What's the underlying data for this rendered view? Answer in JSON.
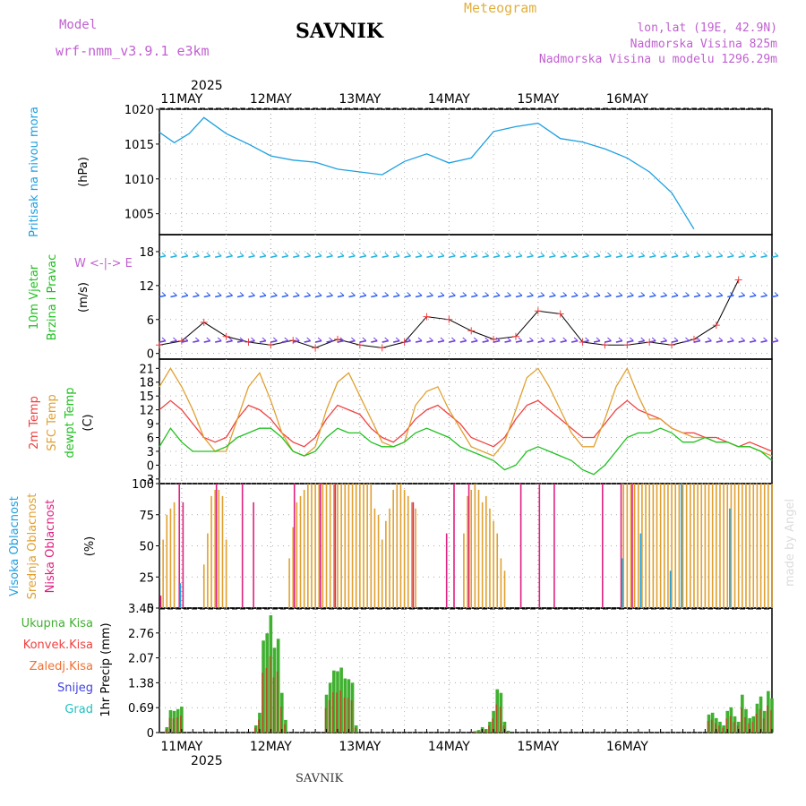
{
  "header": {
    "model_label": "Model",
    "model_version": "wrf-nmm_v3.9.1 e3km",
    "station": "SAVNIK",
    "meteogram": "Meteogram",
    "lonlat": "lon,lat (19E, 42.9N)",
    "elevation": "Nadmorska Visina 825m",
    "model_elevation": "Nadmorska Visina u modelu 1296.29m",
    "bottom_name": "SAVNIK",
    "made_by": "made by Angel"
  },
  "colors": {
    "model": "#c060d0",
    "meteogram": "#e0b040",
    "pressure": "#1ea0e0",
    "t2m": "#f04040",
    "sfc": "#e0a030",
    "dew": "#20c020",
    "cloud_high": "#20a0e0",
    "cloud_mid": "#e0a030",
    "cloud_low": "#e02080",
    "precip_total": "#40b030",
    "precip_conv": "#b05020"
  },
  "x_axis": {
    "year_label": "2025",
    "days": [
      "11MAY",
      "12MAY",
      "13MAY",
      "14MAY",
      "15MAY",
      "16MAY"
    ]
  },
  "panels": {
    "pressure": {
      "label": "Pritisak na nivou mora",
      "unit": "(hPa)"
    },
    "wind": {
      "label1": "10m Vjetar",
      "label2": "Brzina i Pravac",
      "unit": "(m/s)",
      "compass": "W <-|-> E"
    },
    "temp": {
      "label1": "2m Temp",
      "label2": "SFC Temp",
      "label3": "dewpt Temp",
      "unit": "(C)"
    },
    "cloud": {
      "label1": "Visoka Oblacnost",
      "label2": "Srednja Oblacnost",
      "label3": "Niska Oblacnost",
      "unit": "(%)"
    },
    "precip": {
      "unit": "1hr Precip (mm)",
      "legend": [
        "Ukupna Kisa",
        "Konvek.Kisa",
        "Zaledj.Kisa",
        "Snijeg",
        "Grad"
      ]
    }
  },
  "chart_data": [
    {
      "type": "line",
      "title": "Pritisak na nivou mora",
      "ylabel": "hPa",
      "ylim": [
        1002,
        1020
      ],
      "yticks": [
        1005,
        1010,
        1015,
        1020
      ],
      "x_hours": [
        0,
        4,
        8,
        12,
        18,
        24,
        30,
        36,
        42,
        48,
        54,
        60,
        66,
        72,
        78,
        84,
        90,
        96,
        102,
        108,
        114,
        120,
        126,
        132,
        138,
        144
      ],
      "series": [
        {
          "name": "MSLP",
          "values": [
            1016.7,
            1015.2,
            1016.5,
            1018.8,
            1016.5,
            1015.0,
            1013.3,
            1012.7,
            1012.4,
            1011.4,
            1011.0,
            1010.6,
            1012.5,
            1013.6,
            1012.3,
            1013.0,
            1016.8,
            1017.5,
            1018.0,
            1015.8,
            1015.3,
            1014.3,
            1013.0,
            1011.0,
            1008.0,
            1002.8
          ]
        }
      ]
    },
    {
      "type": "line",
      "title": "10m Vjetar Brzina i Pravac",
      "ylabel": "m/s",
      "ylim": [
        -1,
        21
      ],
      "yticks": [
        0,
        6,
        12,
        18
      ],
      "x_hours": [
        0,
        6,
        12,
        18,
        24,
        30,
        36,
        42,
        48,
        54,
        60,
        66,
        72,
        78,
        84,
        90,
        96,
        102,
        108,
        114,
        120,
        126,
        132,
        138,
        144,
        150,
        156
      ],
      "series": [
        {
          "name": "Wind speed",
          "values": [
            1.5,
            2.2,
            5.5,
            3.0,
            2.0,
            1.5,
            2.3,
            1.0,
            2.5,
            1.5,
            1.0,
            2.0,
            6.5,
            6.0,
            4.0,
            2.5,
            3.0,
            7.5,
            7.0,
            2.0,
            1.5,
            1.5,
            2.0,
            1.5,
            2.5,
            5.0,
            13.0
          ]
        }
      ]
    },
    {
      "type": "line",
      "title": "2m Temp / SFC Temp / dewpt Temp",
      "ylabel": "C",
      "ylim": [
        -4,
        23
      ],
      "yticks": [
        -3,
        0,
        3,
        6,
        9,
        12,
        15,
        18,
        21
      ],
      "x_hours": [
        0,
        3,
        6,
        9,
        12,
        15,
        18,
        21,
        24,
        27,
        30,
        33,
        36,
        39,
        42,
        45,
        48,
        51,
        54,
        57,
        60,
        63,
        66,
        69,
        72,
        75,
        78,
        81,
        84,
        87,
        90,
        93,
        96,
        99,
        102,
        105,
        108,
        111,
        114,
        117,
        120,
        123,
        126,
        129,
        132,
        135,
        138,
        141,
        144,
        147,
        150,
        153,
        156,
        159,
        162,
        165
      ],
      "series": [
        {
          "name": "2m Temp",
          "values": [
            12,
            14,
            12,
            9,
            6,
            5,
            6,
            10,
            13,
            12,
            10,
            7,
            5,
            4,
            6,
            10,
            13,
            12,
            11,
            8,
            6,
            5,
            7,
            10,
            12,
            13,
            11,
            9,
            6,
            5,
            4,
            6,
            10,
            13,
            14,
            12,
            10,
            8,
            6,
            6,
            9,
            12,
            14,
            12,
            11,
            10,
            8,
            7,
            7,
            6,
            6,
            5,
            4,
            5,
            4,
            3
          ]
        },
        {
          "name": "SFC Temp",
          "values": [
            17,
            21,
            17,
            12,
            6,
            3,
            3,
            10,
            17,
            20,
            14,
            7,
            3,
            2,
            4,
            12,
            18,
            20,
            15,
            10,
            5,
            4,
            5,
            13,
            16,
            17,
            12,
            8,
            4,
            3,
            2,
            5,
            12,
            19,
            21,
            17,
            12,
            7,
            4,
            4,
            10,
            17,
            21,
            15,
            10,
            10,
            8,
            7,
            6,
            6,
            5,
            5,
            4,
            4,
            3,
            2
          ]
        },
        {
          "name": "dewpt Temp",
          "values": [
            4,
            8,
            5,
            3,
            3,
            3,
            4,
            6,
            7,
            8,
            8,
            6,
            3,
            2,
            3,
            6,
            8,
            7,
            7,
            5,
            4,
            4,
            5,
            7,
            8,
            7,
            6,
            4,
            3,
            2,
            1,
            -1,
            0,
            3,
            4,
            3,
            2,
            1,
            -1,
            -2,
            0,
            3,
            6,
            7,
            7,
            8,
            7,
            5,
            5,
            6,
            5,
            5,
            4,
            4,
            3,
            1
          ]
        }
      ]
    },
    {
      "type": "bar",
      "title": "Visoka / Srednja / Niska Oblacnost",
      "ylabel": "%",
      "ylim": [
        0,
        100
      ],
      "yticks": [
        0,
        25,
        50,
        75,
        100
      ],
      "series": [
        {
          "name": "Srednja Oblacnost",
          "hours": [
            1,
            2,
            3,
            4,
            12,
            13,
            14,
            15,
            16,
            17,
            18,
            35,
            36,
            37,
            38,
            39,
            40,
            41,
            42,
            43,
            44,
            45,
            46,
            47,
            48,
            49,
            50,
            51,
            52,
            53,
            54,
            55,
            56,
            57,
            58,
            59,
            60,
            61,
            62,
            63,
            64,
            65,
            66,
            67,
            68,
            69,
            82,
            83,
            84,
            85,
            86,
            87,
            88,
            89,
            90,
            91,
            92,
            93,
            125,
            126,
            127,
            128,
            129,
            130,
            131,
            132,
            133,
            134,
            135,
            136,
            137,
            138,
            139,
            140,
            141,
            142,
            143,
            144,
            145,
            146,
            147,
            148,
            149,
            150,
            151,
            152,
            153,
            154,
            155,
            156,
            157,
            158,
            159,
            160,
            161,
            162,
            163,
            164,
            165
          ],
          "values": [
            55,
            75,
            80,
            85,
            35,
            60,
            90,
            95,
            95,
            90,
            55,
            40,
            65,
            85,
            90,
            95,
            100,
            100,
            100,
            100,
            100,
            100,
            100,
            100,
            100,
            100,
            100,
            100,
            100,
            100,
            100,
            100,
            100,
            100,
            80,
            75,
            55,
            70,
            80,
            95,
            100,
            100,
            95,
            90,
            85,
            80,
            60,
            90,
            95,
            100,
            95,
            85,
            90,
            80,
            70,
            60,
            40,
            30,
            100,
            100,
            100,
            100,
            100,
            100,
            100,
            100,
            100,
            100,
            100,
            100,
            100,
            100,
            100,
            100,
            100,
            100,
            100,
            100,
            100,
            100,
            100,
            100,
            100,
            100,
            100,
            100,
            100,
            100,
            100,
            100,
            100,
            100,
            100,
            100,
            100,
            100,
            100,
            100,
            100
          ]
        },
        {
          "name": "Niska Oblacnost",
          "hours": [
            0,
            5,
            6,
            15,
            22,
            25,
            36,
            43,
            47,
            68,
            77,
            79,
            83,
            97,
            102,
            106,
            119,
            124,
            127
          ],
          "values": [
            10,
            100,
            85,
            100,
            100,
            85,
            100,
            100,
            100,
            85,
            60,
            100,
            100,
            100,
            100,
            100,
            100,
            100,
            100
          ]
        },
        {
          "name": "Visoka Oblacnost",
          "hours": [
            6,
            125,
            130,
            138,
            141,
            154
          ],
          "values": [
            20,
            40,
            60,
            30,
            100,
            80
          ]
        }
      ]
    },
    {
      "type": "bar",
      "title": "1hr Precip",
      "ylabel": "mm",
      "ylim": [
        0,
        3.45
      ],
      "yticks": [
        0,
        0.69,
        1.38,
        2.07,
        2.76,
        3.45
      ],
      "series": [
        {
          "name": "Ukupna Kisa",
          "hours": [
            2,
            3,
            4,
            5,
            6,
            7,
            26,
            27,
            28,
            29,
            30,
            31,
            32,
            33,
            34,
            35,
            36,
            37,
            38,
            39,
            40,
            41,
            42,
            43,
            44,
            45,
            46,
            47,
            48,
            49,
            50,
            51,
            52,
            53,
            54,
            55,
            56,
            57,
            58,
            59,
            60,
            61,
            62,
            63,
            64,
            65,
            66,
            67,
            68,
            69,
            70,
            71,
            72,
            73,
            74,
            75,
            76,
            77,
            78,
            79,
            80,
            81,
            82,
            83,
            84,
            85,
            86,
            87,
            88,
            89,
            90,
            91,
            92,
            93,
            94,
            148,
            149,
            150,
            151,
            152,
            153,
            154,
            155,
            156,
            157,
            158,
            159,
            160,
            161,
            162,
            163,
            164,
            165
          ],
          "values": [
            0.15,
            0.62,
            0.6,
            0.65,
            0.72,
            0,
            0.2,
            0.55,
            2.55,
            2.75,
            3.25,
            2.35,
            2.6,
            1.1,
            0.35,
            0,
            0,
            0,
            0,
            0,
            0,
            0,
            0,
            0,
            0,
            1.05,
            1.38,
            1.72,
            1.7,
            1.8,
            1.5,
            1.48,
            1.38,
            0.2,
            0,
            0,
            0,
            0,
            0,
            0,
            0,
            0,
            0,
            0,
            0,
            0,
            0,
            0,
            0,
            0,
            0,
            0,
            0,
            0,
            0,
            0,
            0,
            0,
            0,
            0,
            0,
            0,
            0,
            0,
            0,
            0.04,
            0.07,
            0.15,
            0.1,
            0.3,
            0.6,
            1.2,
            1.1,
            0.3,
            0.05,
            0.5,
            0.55,
            0.4,
            0.3,
            0.2,
            0.6,
            0.7,
            0.45,
            0.3,
            1.05,
            0.65,
            0.4,
            0.45,
            0.8,
            1.0,
            0.6,
            1.15,
            0.95
          ]
        }
      ]
    }
  ]
}
